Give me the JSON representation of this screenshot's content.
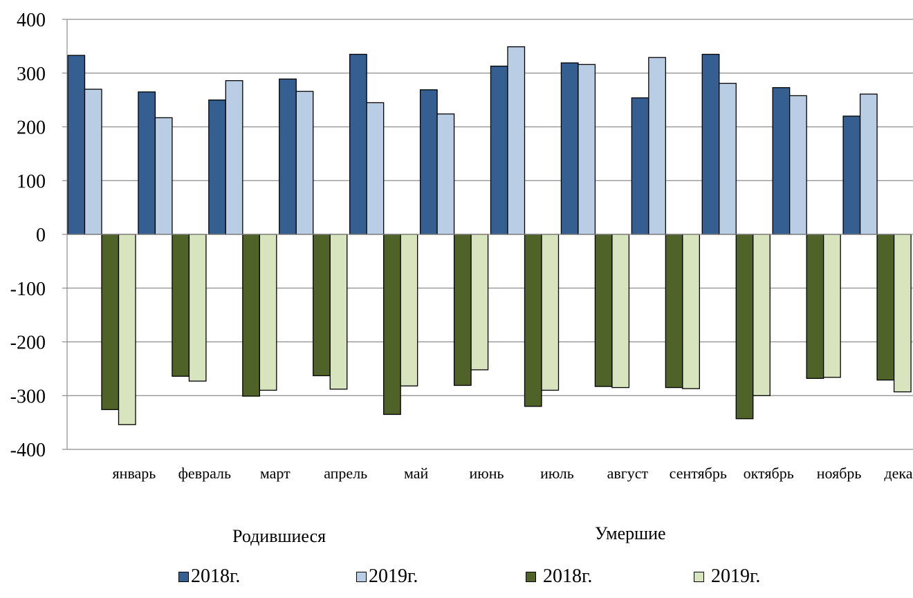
{
  "chart_data": {
    "type": "bar",
    "title": "",
    "xlabel": "",
    "ylabel": "",
    "ylim": [
      -400,
      400
    ],
    "yticks": [
      400,
      300,
      200,
      100,
      0,
      -100,
      -200,
      -300,
      -400
    ],
    "grid": true,
    "categories": [
      "январь",
      "февраль",
      "март",
      "апрель",
      "май",
      "июнь",
      "июль",
      "август",
      "сентябрь",
      "октябрь",
      "ноябрь",
      "декабрь"
    ],
    "series": [
      {
        "name": "2018г.",
        "group": "Родившиеся",
        "color": "#355E91",
        "values": [
          333,
          265,
          250,
          289,
          335,
          269,
          313,
          319,
          254,
          335,
          273,
          220
        ]
      },
      {
        "name": "2019г.",
        "group": "Родившиеся",
        "color": "#B9CDE5",
        "values": [
          270,
          217,
          286,
          266,
          245,
          224,
          349,
          316,
          329,
          281,
          258,
          261
        ]
      },
      {
        "name": "2018г.",
        "group": "Умершие",
        "color": "#4F6228",
        "values": [
          -326,
          -264,
          -301,
          -263,
          -335,
          -281,
          -320,
          -283,
          -285,
          -343,
          -268,
          -271
        ]
      },
      {
        "name": "2019г.",
        "group": "Умершие",
        "color": "#D7E4BD",
        "values": [
          -354,
          -273,
          -290,
          -288,
          -282,
          -252,
          -290,
          -285,
          -287,
          -300,
          -266,
          -293
        ]
      }
    ],
    "group_labels": [
      "Родившиеся",
      "Умершие"
    ],
    "legend_position": "bottom"
  }
}
